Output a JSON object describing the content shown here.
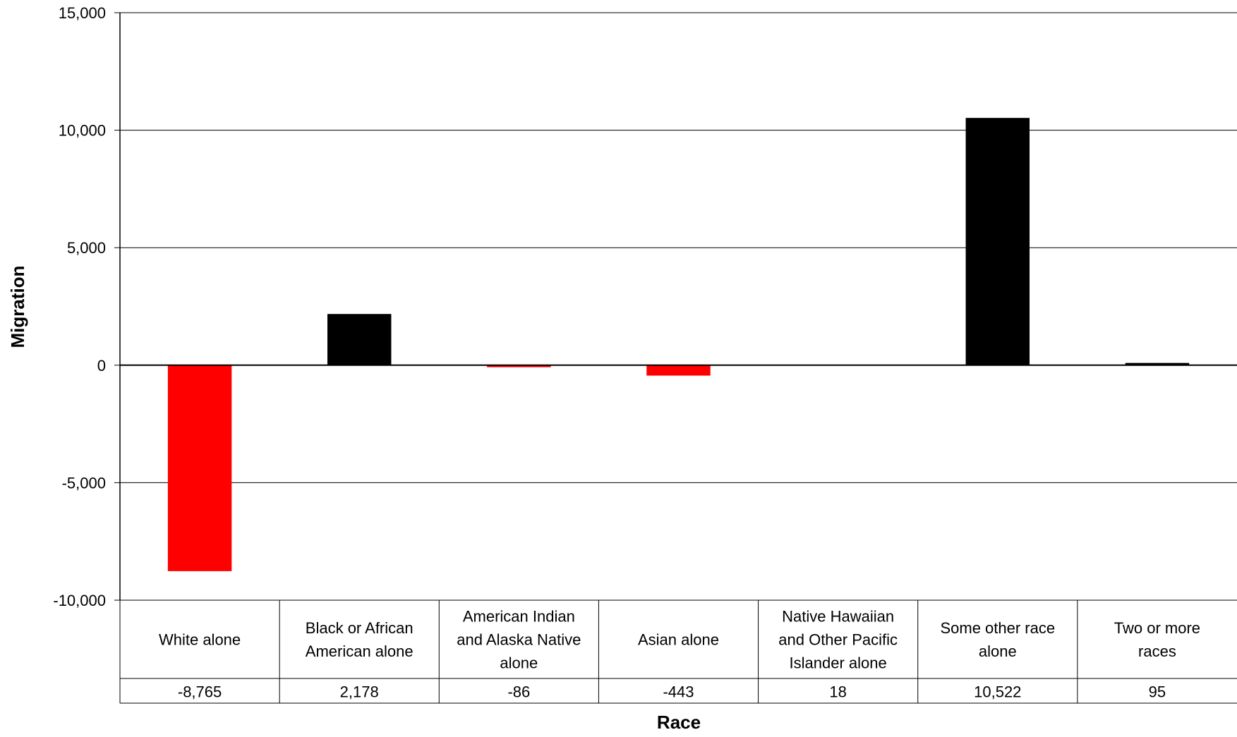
{
  "chart_data": {
    "type": "bar",
    "title": "",
    "xlabel": "Race",
    "ylabel": "Migration",
    "ylim": [
      -10000,
      15000
    ],
    "yticks": [
      15000,
      10000,
      5000,
      0,
      -5000,
      -10000
    ],
    "ytick_labels": [
      "15,000",
      "10,000",
      "5,000",
      "0",
      "-5,000",
      "-10,000"
    ],
    "grid": true,
    "legend": "none",
    "categories": [
      [
        "White alone"
      ],
      [
        "Black or African",
        "American alone"
      ],
      [
        "American Indian",
        "and Alaska Native",
        "alone"
      ],
      [
        "Asian alone"
      ],
      [
        "Native Hawaiian",
        "and Other Pacific",
        "Islander alone"
      ],
      [
        "Some other race",
        "alone"
      ],
      [
        "Two or more",
        "races"
      ]
    ],
    "values": [
      -8765,
      2178,
      -86,
      -443,
      18,
      10522,
      95
    ],
    "value_labels": [
      "-8,765",
      "2,178",
      "-86",
      "-443",
      "18",
      "10,522",
      "95"
    ],
    "data_table": true,
    "colors": {
      "positive": "#000000",
      "negative": "#ff0000"
    }
  }
}
